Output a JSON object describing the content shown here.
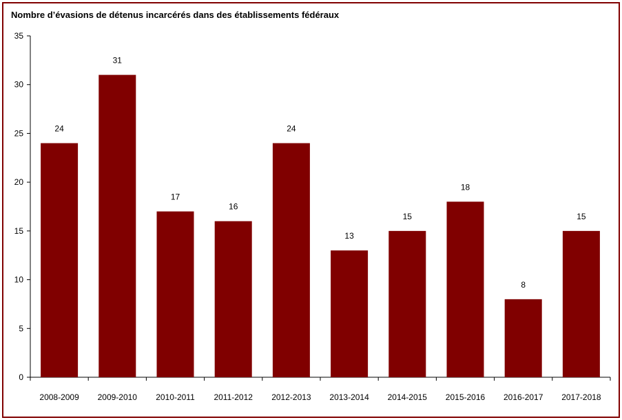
{
  "chart_data": {
    "type": "bar",
    "title": "Nombre d’évasions de détenus incarcérés dans des établissements fédéraux",
    "categories": [
      "2008-2009",
      "2009-2010",
      "2010-2011",
      "2011-2012",
      "2012-2013",
      "2013-2014",
      "2014-2015",
      "2015-2016",
      "2016-2017",
      "2017-2018"
    ],
    "values": [
      24,
      31,
      17,
      16,
      24,
      13,
      15,
      18,
      8,
      15
    ],
    "data_labels": [
      "24",
      "31",
      "17",
      "16",
      "24",
      "13",
      "15",
      "18",
      "8",
      "15"
    ],
    "ylim": [
      0,
      35
    ],
    "yticks": [
      0,
      5,
      10,
      15,
      20,
      25,
      30,
      35
    ],
    "ytick_labels": [
      "0",
      "5",
      "10",
      "15",
      "20",
      "25",
      "30",
      "35"
    ],
    "grid": false,
    "xlabel": "",
    "ylabel": ""
  },
  "colors": {
    "bar": "#800000",
    "border": "#800000",
    "axis": "#000000"
  }
}
